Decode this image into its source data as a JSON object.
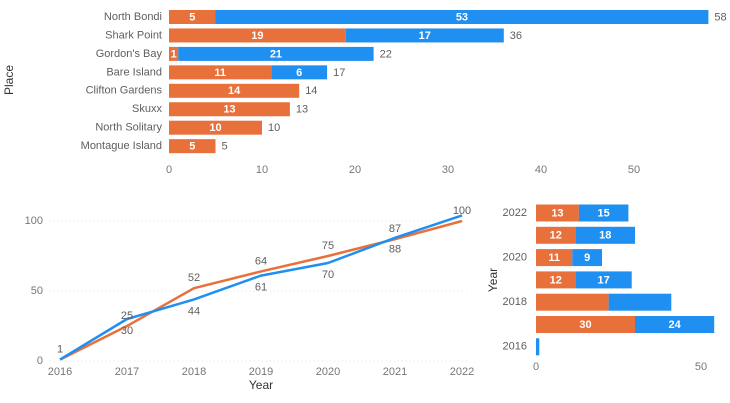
{
  "chart_data": [
    {
      "type": "bar",
      "orientation": "horizontal",
      "stacked": true,
      "y_label": "Place",
      "categories": [
        "North Bondi",
        "Shark Point",
        "Gordon's Bay",
        "Bare Island",
        "Clifton Gardens",
        "Skuxx",
        "North Solitary",
        "Montague Island"
      ],
      "series": [
        {
          "color": "#e8703a",
          "values": [
            5,
            19,
            1,
            11,
            14,
            13,
            10,
            5
          ],
          "value_labels": [
            "5",
            "19",
            "1",
            "11",
            "14",
            "13",
            "10",
            "5"
          ]
        },
        {
          "color": "#1f8ff2",
          "values": [
            53,
            17,
            21,
            6,
            null,
            null,
            null,
            null
          ],
          "value_labels": [
            "53",
            "17",
            "21",
            "6",
            null,
            null,
            null,
            null
          ]
        }
      ],
      "totals": [
        58,
        36,
        22,
        17,
        14,
        13,
        10,
        5
      ],
      "xlim": [
        0,
        60
      ],
      "xticks": [
        0,
        10,
        20,
        30,
        40,
        50
      ]
    },
    {
      "type": "line",
      "x_label": "Year",
      "categories": [
        "2016",
        "2017",
        "2018",
        "2019",
        "2020",
        "2021",
        "2022"
      ],
      "series": [
        {
          "color": "#e8703a",
          "values": [
            1,
            25,
            52,
            64,
            75,
            87,
            100
          ],
          "value_labels": [
            "1",
            "25",
            "52",
            "64",
            "75",
            "87",
            "100"
          ]
        },
        {
          "color": "#1f8ff2",
          "values": [
            1,
            30,
            44,
            61,
            70,
            88,
            104
          ],
          "value_labels": [
            null,
            "30",
            "44",
            "61",
            "70",
            "88",
            null
          ]
        }
      ],
      "ylim": [
        0,
        108
      ],
      "yticks": [
        0,
        50,
        100
      ],
      "grid": true
    },
    {
      "type": "bar",
      "orientation": "horizontal",
      "stacked": true,
      "y_label": "Year",
      "categories": [
        "2022",
        null,
        "2020",
        null,
        "2018",
        null,
        "2016"
      ],
      "series": [
        {
          "color": "#e8703a",
          "values": [
            13,
            12,
            11,
            12,
            22,
            30,
            null
          ],
          "value_labels": [
            "13",
            "12",
            "11",
            "12",
            null,
            "30",
            null
          ]
        },
        {
          "color": "#1f8ff2",
          "values": [
            15,
            18,
            9,
            17,
            19,
            24,
            1
          ],
          "value_labels": [
            "15",
            "18",
            "9",
            "17",
            null,
            "24",
            null
          ]
        }
      ],
      "xlim": [
        0,
        55
      ],
      "xticks": [
        0,
        50
      ]
    }
  ]
}
